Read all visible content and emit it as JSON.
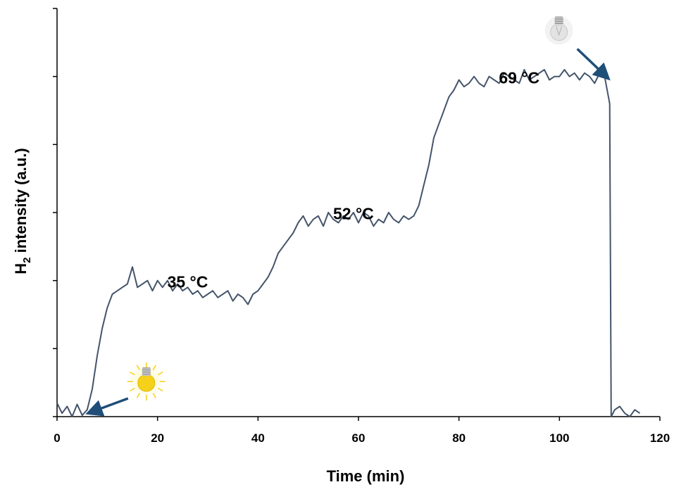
{
  "chart_data": {
    "type": "line",
    "title": "",
    "xlabel": "Time (min)",
    "ylabel": "H2 intensity (a.u.)",
    "ylabel_main": "H",
    "ylabel_sub": "2",
    "ylabel_rest": " intensity (a.u.)",
    "xlim": [
      0,
      120
    ],
    "ylim": [
      0,
      6
    ],
    "xticks": [
      "0",
      "20",
      "40",
      "60",
      "80",
      "100",
      "120"
    ],
    "y_tick_labels_shown": false,
    "grid": false,
    "legend": "none",
    "line_color": "#44546a",
    "arrow_color": "#1f4e79",
    "bulb_on_color": "#f5d11a",
    "bulb_off_color": "#e3e3e3",
    "annotations": [
      {
        "text": "35 °C",
        "x": 26,
        "y": 1.9
      },
      {
        "text": "52 °C",
        "x": 59,
        "y": 2.9
      },
      {
        "text": "69 °C",
        "x": 92,
        "y": 4.9
      }
    ],
    "light_events": [
      {
        "state": "on",
        "icon": "lightbulb-on-icon",
        "x": 6
      },
      {
        "state": "off",
        "icon": "lightbulb-off-icon",
        "x": 110
      }
    ],
    "series": [
      {
        "x": [
          0,
          1,
          2,
          3,
          4,
          5,
          6,
          7,
          8,
          9,
          10,
          11,
          12,
          13,
          14,
          15,
          16,
          17,
          18,
          19,
          20,
          21,
          22,
          23,
          24,
          25,
          26,
          27,
          28,
          29,
          30,
          31,
          32,
          33,
          34,
          35,
          36,
          37,
          38,
          39,
          40,
          41,
          42,
          43,
          44,
          45,
          46,
          47,
          48,
          49,
          50,
          51,
          52,
          53,
          54,
          55,
          56,
          57,
          58,
          59,
          60,
          61,
          62,
          63,
          64,
          65,
          66,
          67,
          68,
          69,
          70,
          71,
          72,
          73,
          74,
          75,
          76,
          77,
          78,
          79,
          80,
          81,
          82,
          83,
          84,
          85,
          86,
          87,
          88,
          89,
          90,
          91,
          92,
          93,
          94,
          95,
          96,
          97,
          98,
          99,
          100,
          101,
          102,
          103,
          104,
          105,
          106,
          107,
          108,
          109,
          110,
          110.3,
          111,
          112,
          113,
          114,
          115,
          116
        ],
        "y": [
          0.2,
          0.05,
          0.15,
          0.0,
          0.18,
          0.02,
          0.1,
          0.4,
          0.9,
          1.3,
          1.6,
          1.8,
          1.85,
          1.9,
          1.95,
          2.2,
          1.9,
          1.95,
          2.0,
          1.85,
          2.0,
          1.9,
          2.0,
          1.85,
          1.95,
          1.85,
          1.9,
          1.8,
          1.85,
          1.75,
          1.8,
          1.85,
          1.75,
          1.8,
          1.85,
          1.7,
          1.8,
          1.75,
          1.65,
          1.8,
          1.85,
          1.95,
          2.05,
          2.2,
          2.4,
          2.5,
          2.6,
          2.7,
          2.85,
          2.95,
          2.8,
          2.9,
          2.95,
          2.8,
          3.0,
          2.9,
          2.85,
          2.95,
          2.9,
          3.0,
          2.85,
          3.0,
          2.95,
          2.8,
          2.9,
          2.85,
          3.0,
          2.9,
          2.85,
          2.95,
          2.9,
          2.95,
          3.1,
          3.4,
          3.7,
          4.1,
          4.3,
          4.5,
          4.7,
          4.8,
          4.95,
          4.85,
          4.9,
          5.0,
          4.9,
          4.85,
          5.0,
          4.95,
          4.9,
          5.05,
          5.0,
          4.95,
          4.9,
          5.1,
          4.95,
          5.0,
          5.05,
          5.1,
          4.95,
          5.0,
          5.0,
          5.1,
          5.0,
          5.05,
          4.95,
          5.05,
          5.0,
          4.9,
          5.05,
          5.0,
          4.6,
          0.0,
          0.1,
          0.15,
          0.05,
          0.0,
          0.1,
          0.05
        ]
      }
    ]
  }
}
